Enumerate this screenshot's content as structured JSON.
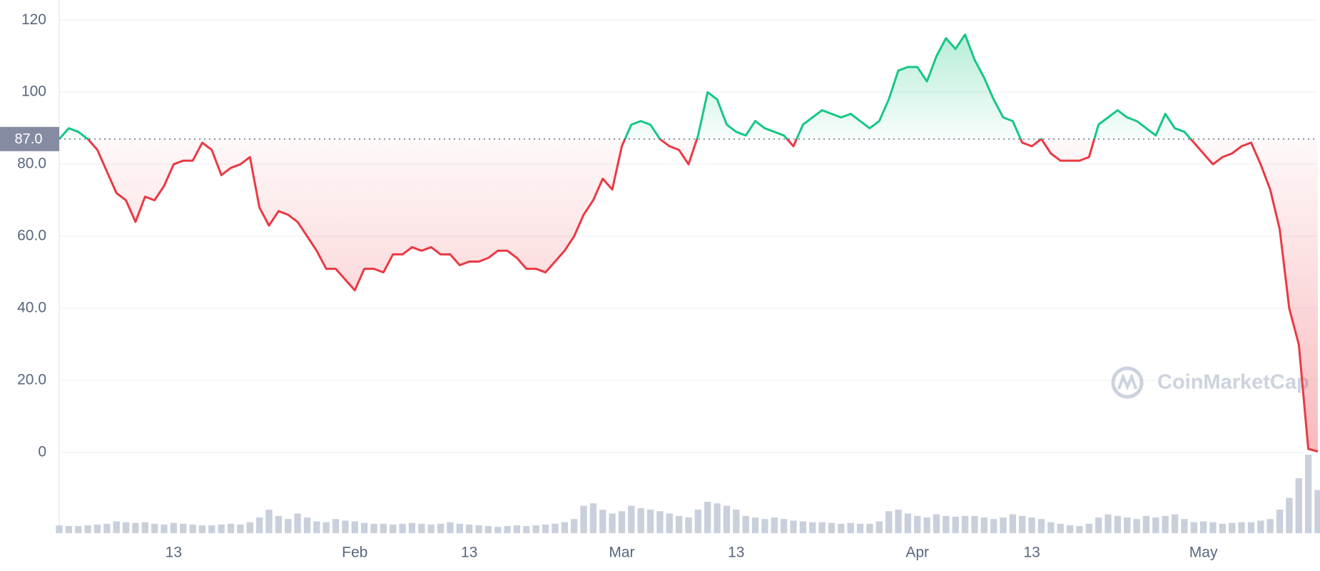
{
  "chart_data": {
    "type": "line",
    "categories": [
      null,
      null,
      null,
      null,
      null,
      null,
      null,
      null,
      null,
      null,
      null,
      null,
      "13",
      null,
      null,
      null,
      null,
      null,
      null,
      null,
      null,
      null,
      null,
      null,
      null,
      null,
      null,
      null,
      null,
      null,
      null,
      "Feb",
      null,
      null,
      null,
      null,
      null,
      null,
      null,
      null,
      null,
      null,
      null,
      "13",
      null,
      null,
      null,
      null,
      null,
      null,
      null,
      null,
      null,
      null,
      null,
      null,
      null,
      null,
      null,
      "Mar",
      null,
      null,
      null,
      null,
      null,
      null,
      null,
      null,
      null,
      null,
      null,
      "13",
      null,
      null,
      null,
      null,
      null,
      null,
      null,
      null,
      null,
      null,
      null,
      null,
      null,
      null,
      null,
      null,
      null,
      null,
      "Apr",
      null,
      null,
      null,
      null,
      null,
      null,
      null,
      null,
      null,
      null,
      null,
      "13",
      null,
      null,
      null,
      null,
      null,
      null,
      null,
      null,
      null,
      null,
      null,
      null,
      null,
      null,
      null,
      null,
      null,
      "May",
      null,
      null,
      null,
      null,
      null,
      null,
      null,
      null,
      null,
      null,
      null,
      null
    ],
    "values": [
      87,
      90,
      89,
      87,
      84,
      78,
      72,
      70,
      64,
      71,
      70,
      74,
      80,
      81,
      81,
      86,
      84,
      77,
      79,
      80,
      82,
      68,
      63,
      67,
      66,
      64,
      60,
      56,
      51,
      51,
      48,
      45,
      51,
      51,
      50,
      55,
      55,
      57,
      56,
      57,
      55,
      55,
      52,
      53,
      53,
      54,
      56,
      56,
      54,
      51,
      51,
      50,
      53,
      56,
      60,
      66,
      70,
      76,
      73,
      85,
      91,
      92,
      91,
      87,
      85,
      84,
      80,
      88,
      100,
      98,
      91,
      89,
      88,
      92,
      90,
      89,
      88,
      85,
      91,
      93,
      95,
      94,
      93,
      94,
      92,
      90,
      92,
      98,
      106,
      107,
      107,
      103,
      110,
      115,
      112,
      116,
      109,
      104,
      98,
      93,
      92,
      86,
      85,
      87,
      83,
      81,
      81,
      81,
      82,
      91,
      93,
      95,
      93,
      92,
      90,
      88,
      94,
      90,
      89,
      86,
      83,
      80,
      82,
      83,
      85,
      86,
      80,
      73,
      62,
      40,
      30,
      1,
      0.3
    ],
    "color_up": "#16c784",
    "color_down": "#ea3943",
    "baseline": {
      "value": 87,
      "label": "87.0"
    },
    "ylim": [
      0,
      125
    ],
    "yticks": [
      0,
      {
        "value": 20,
        "label": "20.0"
      },
      {
        "value": 40,
        "label": "40.0"
      },
      {
        "value": 60,
        "label": "60.0"
      },
      {
        "value": 80,
        "label": "80.0"
      },
      100,
      120
    ],
    "grid": true,
    "volume": {
      "values": [
        10,
        9,
        9,
        10,
        11,
        12,
        15,
        14,
        13,
        14,
        12,
        11,
        13,
        12,
        11,
        10,
        10,
        11,
        12,
        11,
        14,
        20,
        30,
        22,
        18,
        25,
        20,
        15,
        14,
        18,
        16,
        15,
        13,
        12,
        12,
        11,
        12,
        13,
        12,
        11,
        12,
        14,
        12,
        11,
        10,
        9,
        8,
        9,
        10,
        9,
        10,
        11,
        12,
        14,
        18,
        35,
        38,
        30,
        25,
        28,
        35,
        32,
        30,
        28,
        25,
        22,
        20,
        30,
        40,
        38,
        35,
        30,
        22,
        20,
        18,
        20,
        18,
        16,
        15,
        14,
        14,
        13,
        12,
        13,
        12,
        12,
        15,
        28,
        30,
        25,
        22,
        20,
        24,
        22,
        21,
        22,
        22,
        20,
        18,
        20,
        24,
        22,
        20,
        18,
        14,
        12,
        10,
        9,
        12,
        20,
        24,
        22,
        20,
        18,
        22,
        20,
        22,
        24,
        18,
        14,
        15,
        14,
        12,
        13,
        14,
        14,
        16,
        18,
        30,
        45,
        70,
        100,
        55
      ],
      "color": "#c9d0dc",
      "ylim": [
        0,
        100
      ]
    },
    "watermark": "CoinMarketCap"
  }
}
